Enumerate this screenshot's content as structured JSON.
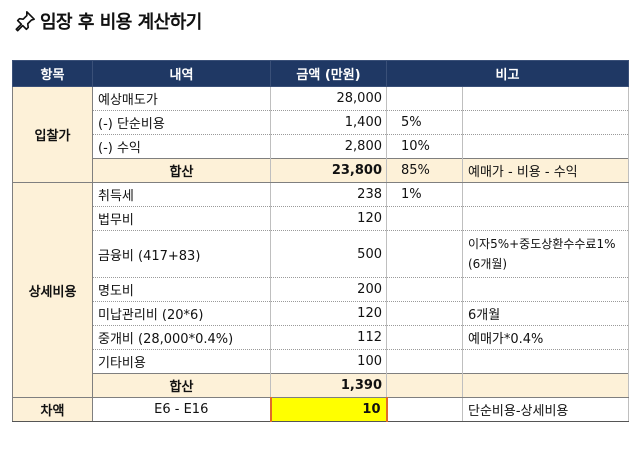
{
  "title": "임장 후 비용 계산하기",
  "headers": [
    "항목",
    "내역",
    "금액 (만원)",
    "비고"
  ],
  "bid": {
    "label": "입찰가",
    "rows": [
      {
        "item": "예상매도가",
        "amount": "28,000",
        "pct": "",
        "note": ""
      },
      {
        "item": "(-) 단순비용",
        "amount": "1,400",
        "pct": "5%",
        "note": ""
      },
      {
        "item": "(-) 수익",
        "amount": "2,800",
        "pct": "10%",
        "note": ""
      }
    ],
    "sum": {
      "label": "합산",
      "amount": "23,800",
      "pct": "85%",
      "note": "예매가 - 비용 - 수익"
    }
  },
  "detail": {
    "label": "상세비용",
    "rows": [
      {
        "item": "취득세",
        "amount": "238",
        "pct": "1%",
        "note": ""
      },
      {
        "item": "법무비",
        "amount": "120",
        "pct": "",
        "note": ""
      },
      {
        "item": "금융비 (417+83)",
        "amount": "500",
        "pct": "",
        "note": "이자5%+중도상환수수료1% (6개월)"
      },
      {
        "item": "명도비",
        "amount": "200",
        "pct": "",
        "note": ""
      },
      {
        "item": "미납관리비 (20*6)",
        "amount": "120",
        "pct": "",
        "note": "6개월"
      },
      {
        "item": "중개비 (28,000*0.4%)",
        "amount": "112",
        "pct": "",
        "note": "예매가*0.4%"
      },
      {
        "item": "기타비용",
        "amount": "100",
        "pct": "",
        "note": ""
      }
    ],
    "sum": {
      "label": "합산",
      "amount": "1,390"
    }
  },
  "diff": {
    "label": "차액",
    "formula": "E6 - E16",
    "amount": "10",
    "note": "단순비용-상세비용"
  }
}
